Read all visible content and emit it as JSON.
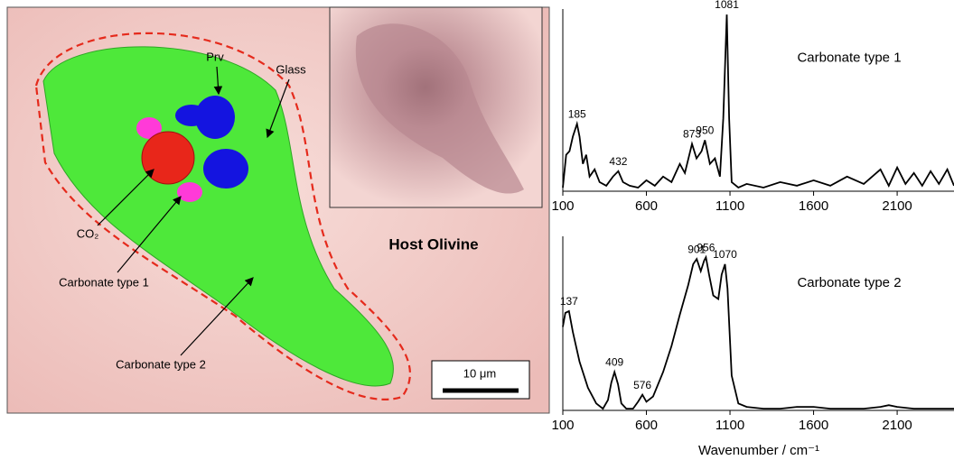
{
  "figure": {
    "labels": [
      "Prv",
      "Glass",
      "CO₂",
      "Carbonate type 1",
      "Carbonate type 2"
    ],
    "host_label": "Host Olivine",
    "scale_bar": "10 μm"
  },
  "chart_data": [
    {
      "type": "line",
      "title": "Carbonate type 1",
      "color": "#000000",
      "x": [
        100,
        120,
        140,
        160,
        185,
        200,
        220,
        240,
        260,
        290,
        320,
        360,
        400,
        432,
        460,
        500,
        550,
        600,
        650,
        700,
        750,
        800,
        830,
        873,
        900,
        930,
        950,
        980,
        1010,
        1040,
        1060,
        1081,
        1095,
        1110,
        1150,
        1200,
        1300,
        1400,
        1500,
        1600,
        1700,
        1800,
        1900,
        2000,
        2050,
        2100,
        2150,
        2200,
        2250,
        2300,
        2350,
        2400,
        2440
      ],
      "values": [
        2,
        20,
        22,
        30,
        37,
        30,
        15,
        20,
        8,
        12,
        5,
        3,
        8,
        11,
        5,
        3,
        2,
        6,
        3,
        8,
        5,
        15,
        10,
        26,
        18,
        22,
        28,
        15,
        18,
        8,
        40,
        97,
        40,
        5,
        2,
        4,
        2,
        5,
        3,
        6,
        3,
        8,
        4,
        12,
        3,
        13,
        4,
        10,
        3,
        11,
        4,
        12,
        3
      ],
      "peak_labels": [
        185,
        432,
        873,
        950,
        1081
      ],
      "xlim": [
        100,
        2440
      ],
      "ylim": [
        0,
        100
      ],
      "xticks": [
        100,
        600,
        1100,
        1600,
        2100
      ]
    },
    {
      "type": "line",
      "title": "Carbonate type 2",
      "color": "#000000",
      "xlabel": "Wavenumber / cm⁻¹",
      "x": [
        100,
        115,
        137,
        160,
        200,
        250,
        300,
        340,
        370,
        390,
        409,
        430,
        450,
        480,
        520,
        550,
        576,
        600,
        640,
        700,
        750,
        800,
        850,
        880,
        901,
        925,
        945,
        956,
        975,
        1000,
        1030,
        1050,
        1070,
        1085,
        1110,
        1150,
        1200,
        1300,
        1400,
        1500,
        1600,
        1700,
        1800,
        1900,
        2000,
        2050,
        2100,
        2200,
        2300,
        2440
      ],
      "values": [
        48,
        56,
        57,
        45,
        28,
        13,
        4,
        1,
        6,
        16,
        22,
        15,
        4,
        1,
        1,
        5,
        9,
        5,
        8,
        22,
        37,
        55,
        72,
        84,
        87,
        80,
        86,
        88,
        78,
        66,
        64,
        78,
        84,
        70,
        20,
        4,
        2,
        1,
        1,
        2,
        2,
        1,
        1,
        1,
        2,
        3,
        2,
        1,
        1,
        1
      ],
      "peak_labels": [
        137,
        409,
        576,
        901,
        956,
        1070
      ],
      "xlim": [
        100,
        2440
      ],
      "ylim": [
        0,
        100
      ],
      "xticks": [
        100,
        600,
        1100,
        1600,
        2100
      ]
    }
  ]
}
